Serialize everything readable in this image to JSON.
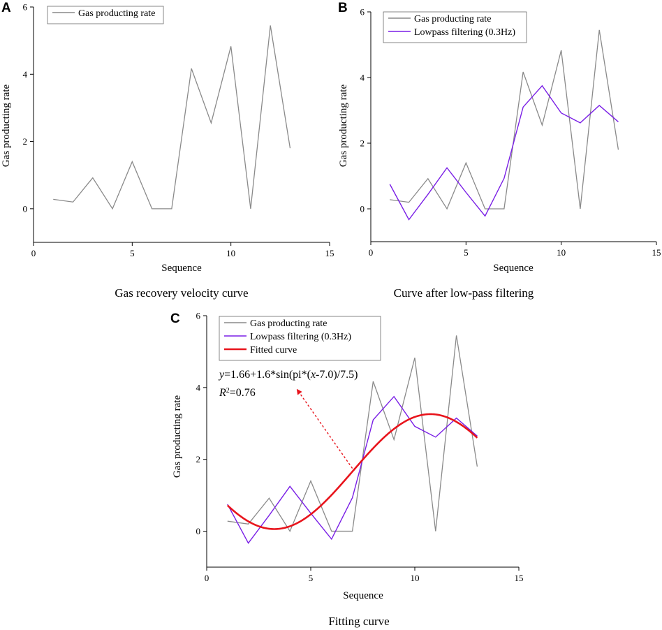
{
  "colors": {
    "gas": "#8a8a8a",
    "lowpass": "#7a1fe6",
    "fitted": "#e8141c",
    "axis": "#000000"
  },
  "series_data": {
    "x": [
      1,
      2,
      3,
      4,
      5,
      6,
      7,
      8,
      9,
      10,
      11,
      12,
      13
    ],
    "gas": [
      0.28,
      0.2,
      0.92,
      0.0,
      1.4,
      0.0,
      0.0,
      4.17,
      2.55,
      4.83,
      0.0,
      5.45,
      1.8
    ],
    "lowpass": [
      0.75,
      -0.33,
      0.44,
      1.25,
      0.5,
      -0.22,
      0.93,
      3.1,
      3.75,
      2.92,
      2.62,
      3.15,
      2.65
    ]
  },
  "chart_data": [
    {
      "panel": "A",
      "type": "line",
      "caption": "Gas recovery velocity curve",
      "xlabel": "Sequence",
      "ylabel": "Gas producting rate",
      "xlim": [
        0,
        15
      ],
      "ylim": [
        -1,
        6
      ],
      "xticks": [
        0,
        5,
        10,
        15
      ],
      "yticks": [
        0,
        2,
        4,
        6
      ],
      "legend_position": "top-left",
      "series": [
        {
          "name": "Gas producting rate",
          "key": "gas"
        }
      ]
    },
    {
      "panel": "B",
      "type": "line",
      "caption": "Curve after low-pass filtering",
      "xlabel": "Sequence",
      "ylabel": "Gas producting rate",
      "xlim": [
        0,
        15
      ],
      "ylim": [
        -1,
        6
      ],
      "xticks": [
        0,
        5,
        10,
        15
      ],
      "yticks": [
        0,
        2,
        4,
        6
      ],
      "legend_position": "top-left",
      "series": [
        {
          "name": "Gas producting rate",
          "key": "gas"
        },
        {
          "name": "Lowpass filtering (0.3Hz)",
          "key": "lowpass"
        }
      ]
    },
    {
      "panel": "C",
      "type": "line",
      "caption": "Fitting curve",
      "xlabel": "Sequence",
      "ylabel": "Gas producting rate",
      "xlim": [
        0,
        15
      ],
      "ylim": [
        -1,
        6
      ],
      "xticks": [
        0,
        5,
        10,
        15
      ],
      "yticks": [
        0,
        2,
        4,
        6
      ],
      "legend_position": "top-left",
      "series": [
        {
          "name": "Gas producting rate",
          "key": "gas"
        },
        {
          "name": "Lowpass filtering (0.3Hz)",
          "key": "lowpass"
        },
        {
          "name": "Fitted curve",
          "key": "fitted",
          "function": {
            "a": 1.66,
            "b": 1.6,
            "x0": 7.0,
            "period_div": 7.5,
            "x_range": [
              1,
              13
            ]
          }
        }
      ],
      "annotation": {
        "equation_prefix": "y",
        "equation_mid": "=1.66+1.6*sin(pi*(",
        "equation_var": "x",
        "equation_suffix": "-7.0)/7.5)",
        "r2_label": "R",
        "r2_sup": "2",
        "r2_value": "=0.76",
        "arrow_from": [
          7.0,
          1.75
        ],
        "arrow_to": [
          4.4,
          3.9
        ]
      }
    }
  ]
}
